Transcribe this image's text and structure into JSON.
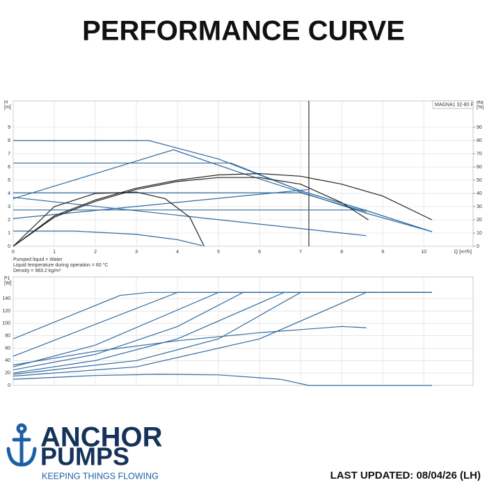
{
  "title": "PERFORMANCE CURVE",
  "chart_data": [
    {
      "type": "line",
      "y_label": "H",
      "y_unit": "[m]",
      "y2_label": "eta",
      "y2_unit": "[%]",
      "x_label": "Q [m³/h]",
      "annotation": "MAGNA1 32-80 F",
      "xlim": [
        0,
        11.2
      ],
      "xticks": [
        0,
        1,
        2,
        3,
        4,
        5,
        6,
        7,
        8,
        9,
        10
      ],
      "ylim": [
        0,
        11
      ],
      "yticks": [
        0,
        1,
        2,
        3,
        4,
        5,
        6,
        7,
        8,
        9
      ],
      "y2lim": [
        0,
        110
      ],
      "y2ticks": [
        0,
        10,
        20,
        30,
        40,
        50,
        60,
        70,
        80,
        90
      ],
      "grid": true,
      "reference_x": 7.2,
      "reference_color": "#333333",
      "series": [
        {
          "color": "#2f6aa0",
          "x": [
            0,
            3.3,
            5,
            7,
            8.6,
            10.2
          ],
          "values": [
            8,
            8,
            6.6,
            4.2,
            2.7,
            1.1
          ]
        },
        {
          "color": "#2f6aa0",
          "x": [
            0,
            3.9,
            5.5,
            7.2,
            8.6,
            10.2
          ],
          "values": [
            3.6,
            7.3,
            5.6,
            3.9,
            2.5,
            1.1
          ]
        },
        {
          "color": "#2f6aa0",
          "x": [
            0,
            5.3,
            7,
            8.6,
            10.2
          ],
          "values": [
            6.3,
            6.3,
            4.2,
            2.7,
            1.1
          ]
        },
        {
          "color": "#2f6aa0",
          "x": [
            0,
            7,
            8.6
          ],
          "values": [
            4.05,
            4.05,
            2.6
          ]
        },
        {
          "color": "#2f6aa0",
          "x": [
            0,
            8.6
          ],
          "values": [
            2.75,
            2.75
          ]
        },
        {
          "color": "#2f6aa0",
          "x": [
            0,
            7.2
          ],
          "values": [
            2.1,
            4.3
          ]
        },
        {
          "color": "#2f6aa0",
          "x": [
            0,
            8.6
          ],
          "values": [
            3.7,
            0.8
          ]
        },
        {
          "color": "#2f6aa0",
          "x": [
            0,
            1.5,
            3,
            4,
            4.6
          ],
          "values": [
            1.15,
            1.15,
            0.9,
            0.5,
            0.05
          ]
        },
        {
          "color": "#222222",
          "axis": "y2",
          "x": [
            0,
            1,
            2,
            3,
            4,
            5,
            6,
            7,
            8,
            9,
            10.2
          ],
          "values": [
            0,
            23,
            35,
            44,
            50,
            54,
            55,
            53,
            47,
            38,
            20
          ]
        },
        {
          "color": "#222222",
          "axis": "y2",
          "x": [
            0,
            1,
            2,
            3,
            4,
            5,
            6,
            7,
            8,
            8.65
          ],
          "values": [
            0,
            22,
            34,
            43,
            49,
            52,
            52,
            47,
            33,
            20
          ]
        },
        {
          "color": "#222222",
          "axis": "y2",
          "x": [
            0,
            1,
            2,
            3,
            3.7,
            4.3,
            4.65
          ],
          "values": [
            0,
            30,
            40,
            41,
            36,
            22,
            0
          ]
        }
      ]
    },
    {
      "type": "line",
      "y_label": "P1",
      "y_unit": "[W]",
      "xlim": [
        0,
        11.2
      ],
      "ylim": [
        0,
        175
      ],
      "yticks": [
        0,
        20,
        40,
        60,
        80,
        100,
        120,
        140
      ],
      "xticks": [
        0,
        1,
        2,
        3,
        4,
        5,
        6,
        7,
        8,
        9,
        10
      ],
      "grid": true,
      "series": [
        {
          "color": "#2f6aa0",
          "x": [
            0,
            2.6,
            3.3,
            10.2
          ],
          "values": [
            75,
            145,
            150,
            150
          ]
        },
        {
          "color": "#2f6aa0",
          "x": [
            0,
            4,
            10.2
          ],
          "values": [
            47,
            150,
            150
          ]
        },
        {
          "color": "#2f6aa0",
          "x": [
            0,
            2,
            5,
            10.2
          ],
          "values": [
            30,
            65,
            150,
            150
          ]
        },
        {
          "color": "#2f6aa0",
          "x": [
            0,
            2,
            4,
            5.6,
            10.2
          ],
          "values": [
            25,
            50,
            95,
            150,
            150
          ]
        },
        {
          "color": "#2f6aa0",
          "x": [
            0,
            2,
            4,
            6.6,
            10.2
          ],
          "values": [
            20,
            40,
            75,
            150,
            150
          ]
        },
        {
          "color": "#2f6aa0",
          "x": [
            0,
            3,
            5,
            7,
            10.2
          ],
          "values": [
            18,
            40,
            75,
            150,
            150
          ]
        },
        {
          "color": "#2f6aa0",
          "x": [
            0,
            3,
            6,
            8.6,
            10.2
          ],
          "values": [
            15,
            30,
            75,
            150,
            150
          ]
        },
        {
          "color": "#2f6aa0",
          "x": [
            0,
            2,
            4,
            6,
            7,
            8,
            8.6
          ],
          "values": [
            33,
            55,
            72,
            85,
            90,
            95,
            93
          ]
        },
        {
          "color": "#2f6aa0",
          "x": [
            0,
            2,
            3.5,
            5,
            6.5,
            7.2,
            10.2
          ],
          "values": [
            10,
            16,
            18,
            17,
            10,
            0,
            0
          ]
        }
      ]
    }
  ],
  "notes": [
    "Pumped liquid = Water",
    "Liquid temperature during operation = 60 °C",
    "Density = 983.2 kg/m³"
  ],
  "brand": {
    "name_1": "ANCHOR",
    "name_2": "PUMPS",
    "slogan": "KEEPING THINGS FLOWING"
  },
  "footer": "LAST UPDATED: 08/04/26 (LH)"
}
